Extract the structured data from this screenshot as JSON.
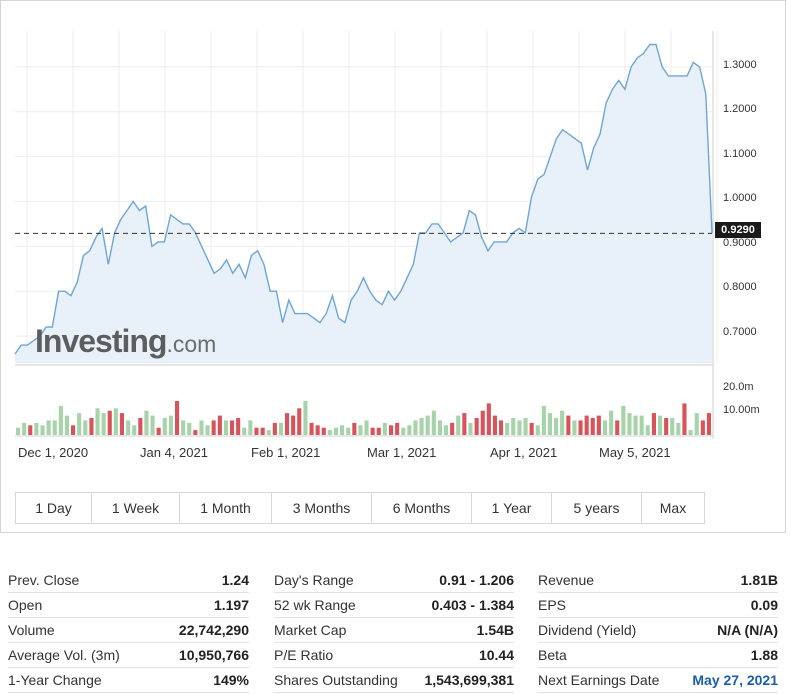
{
  "chart": {
    "current_price": "0.9290",
    "logo": {
      "brand": "Investing",
      "domain": ".com"
    },
    "price_axis_ticks": [
      "1.3000",
      "1.2000",
      "1.1000",
      "1.0000",
      "0.9000",
      "0.8000",
      "0.7000"
    ],
    "volume_axis_ticks": [
      "20.0m",
      "10.00m"
    ],
    "date_ticks": [
      "Dec 1, 2020",
      "Jan 4, 2021",
      "Feb 1, 2021",
      "Mar 1, 2021",
      "Apr 1, 2021",
      "May 5, 2021"
    ],
    "colors": {
      "line": "#6fa5d6",
      "fill": "#e8f1fa",
      "up_volume": "#a7d3aa",
      "down_volume": "#d9535a",
      "grid": "#eeeeee"
    }
  },
  "chart_data": {
    "type": "area",
    "title": "",
    "ylim": [
      0.64,
      1.38
    ],
    "volume_ylim": [
      0,
      28
    ],
    "last_price": 0.929,
    "prices": [
      0.66,
      0.68,
      0.68,
      0.69,
      0.7,
      0.72,
      0.72,
      0.8,
      0.8,
      0.79,
      0.82,
      0.88,
      0.89,
      0.92,
      0.94,
      0.86,
      0.93,
      0.96,
      0.98,
      1.0,
      0.98,
      0.99,
      0.9,
      0.91,
      0.91,
      0.97,
      0.96,
      0.95,
      0.95,
      0.93,
      0.9,
      0.87,
      0.84,
      0.85,
      0.87,
      0.84,
      0.86,
      0.83,
      0.88,
      0.89,
      0.86,
      0.8,
      0.8,
      0.73,
      0.78,
      0.75,
      0.75,
      0.75,
      0.74,
      0.73,
      0.75,
      0.79,
      0.74,
      0.73,
      0.78,
      0.8,
      0.83,
      0.8,
      0.78,
      0.77,
      0.8,
      0.78,
      0.8,
      0.83,
      0.86,
      0.93,
      0.93,
      0.95,
      0.95,
      0.93,
      0.91,
      0.92,
      0.93,
      0.98,
      0.97,
      0.92,
      0.89,
      0.91,
      0.91,
      0.91,
      0.93,
      0.94,
      0.93,
      1.01,
      1.05,
      1.06,
      1.1,
      1.14,
      1.16,
      1.15,
      1.14,
      1.13,
      1.07,
      1.12,
      1.15,
      1.22,
      1.25,
      1.27,
      1.25,
      1.3,
      1.32,
      1.33,
      1.35,
      1.35,
      1.3,
      1.28,
      1.28,
      1.28,
      1.28,
      1.31,
      1.3,
      1.24,
      0.93
    ],
    "volumes": [
      [
        3,
        "up"
      ],
      [
        5,
        "up"
      ],
      [
        4,
        "down"
      ],
      [
        5,
        "up"
      ],
      [
        4,
        "up"
      ],
      [
        6,
        "up"
      ],
      [
        6,
        "up"
      ],
      [
        12,
        "up"
      ],
      [
        8,
        "up"
      ],
      [
        4,
        "down"
      ],
      [
        9,
        "up"
      ],
      [
        6,
        "up"
      ],
      [
        7,
        "down"
      ],
      [
        11,
        "up"
      ],
      [
        9,
        "up"
      ],
      [
        10,
        "down"
      ],
      [
        11,
        "up"
      ],
      [
        9,
        "down"
      ],
      [
        6,
        "up"
      ],
      [
        4,
        "up"
      ],
      [
        7,
        "down"
      ],
      [
        10,
        "up"
      ],
      [
        8,
        "up"
      ],
      [
        3,
        "down"
      ],
      [
        7,
        "up"
      ],
      [
        8,
        "up"
      ],
      [
        14,
        "down"
      ],
      [
        6,
        "up"
      ],
      [
        5,
        "up"
      ],
      [
        2,
        "down"
      ],
      [
        6,
        "up"
      ],
      [
        4,
        "up"
      ],
      [
        6,
        "down"
      ],
      [
        8,
        "down"
      ],
      [
        6,
        "up"
      ],
      [
        6,
        "down"
      ],
      [
        7,
        "down"
      ],
      [
        3,
        "up"
      ],
      [
        6,
        "up"
      ],
      [
        3,
        "down"
      ],
      [
        3,
        "down"
      ],
      [
        2,
        "up"
      ],
      [
        5,
        "down"
      ],
      [
        5,
        "up"
      ],
      [
        9,
        "down"
      ],
      [
        8,
        "down"
      ],
      [
        11,
        "down"
      ],
      [
        14,
        "up"
      ],
      [
        5,
        "down"
      ],
      [
        4,
        "down"
      ],
      [
        3,
        "down"
      ],
      [
        2,
        "up"
      ],
      [
        3,
        "up"
      ],
      [
        4,
        "up"
      ],
      [
        3,
        "up"
      ],
      [
        5,
        "down"
      ],
      [
        4,
        "up"
      ],
      [
        6,
        "up"
      ],
      [
        3,
        "down"
      ],
      [
        3,
        "down"
      ],
      [
        5,
        "up"
      ],
      [
        4,
        "down"
      ],
      [
        5,
        "down"
      ],
      [
        3,
        "up"
      ],
      [
        4,
        "up"
      ],
      [
        6,
        "up"
      ],
      [
        7,
        "up"
      ],
      [
        8,
        "up"
      ],
      [
        10,
        "up"
      ],
      [
        6,
        "up"
      ],
      [
        4,
        "up"
      ],
      [
        5,
        "down"
      ],
      [
        8,
        "up"
      ],
      [
        9,
        "down"
      ],
      [
        5,
        "up"
      ],
      [
        7,
        "down"
      ],
      [
        10,
        "down"
      ],
      [
        13,
        "down"
      ],
      [
        8,
        "down"
      ],
      [
        6,
        "down"
      ],
      [
        5,
        "up"
      ],
      [
        7,
        "up"
      ],
      [
        6,
        "up"
      ],
      [
        7,
        "up"
      ],
      [
        5,
        "down"
      ],
      [
        4,
        "up"
      ],
      [
        12,
        "up"
      ],
      [
        9,
        "up"
      ],
      [
        7,
        "up"
      ],
      [
        10,
        "up"
      ],
      [
        8,
        "down"
      ],
      [
        6,
        "up"
      ],
      [
        6,
        "down"
      ],
      [
        8,
        "down"
      ],
      [
        7,
        "down"
      ],
      [
        8,
        "down"
      ],
      [
        6,
        "up"
      ],
      [
        10,
        "up"
      ],
      [
        6,
        "down"
      ],
      [
        12,
        "up"
      ],
      [
        9,
        "up"
      ],
      [
        8,
        "up"
      ],
      [
        8,
        "up"
      ],
      [
        4,
        "up"
      ],
      [
        9,
        "down"
      ],
      [
        8,
        "up"
      ],
      [
        7,
        "down"
      ],
      [
        7,
        "up"
      ],
      [
        5,
        "up"
      ],
      [
        13,
        "down"
      ],
      [
        2,
        "up"
      ],
      [
        9,
        "up"
      ],
      [
        6,
        "down"
      ],
      [
        9,
        "down"
      ]
    ]
  },
  "range_buttons": [
    "1 Day",
    "1 Week",
    "1 Month",
    "3 Months",
    "6 Months",
    "1 Year",
    "5 years",
    "Max"
  ],
  "stats": {
    "col1": [
      {
        "label": "Prev. Close",
        "value": "1.24"
      },
      {
        "label": "Open",
        "value": "1.197"
      },
      {
        "label": "Volume",
        "value": "22,742,290"
      },
      {
        "label": "Average Vol. (3m)",
        "value": "10,950,766"
      },
      {
        "label": "1-Year Change",
        "value": "149%"
      }
    ],
    "col2": [
      {
        "label": "Day's Range",
        "value": "0.91 - 1.206"
      },
      {
        "label": "52 wk Range",
        "value": "0.403 - 1.384"
      },
      {
        "label": "Market Cap",
        "value": "1.54B"
      },
      {
        "label": "P/E Ratio",
        "value": "10.44"
      },
      {
        "label": "Shares Outstanding",
        "value": "1,543,699,381"
      }
    ],
    "col3": [
      {
        "label": "Revenue",
        "value": "1.81B"
      },
      {
        "label": "EPS",
        "value": "0.09"
      },
      {
        "label": "Dividend (Yield)",
        "value": "N/A (N/A)"
      },
      {
        "label": "Beta",
        "value": "1.88"
      },
      {
        "label": "Next Earnings Date",
        "value": "May 27, 2021"
      }
    ]
  }
}
